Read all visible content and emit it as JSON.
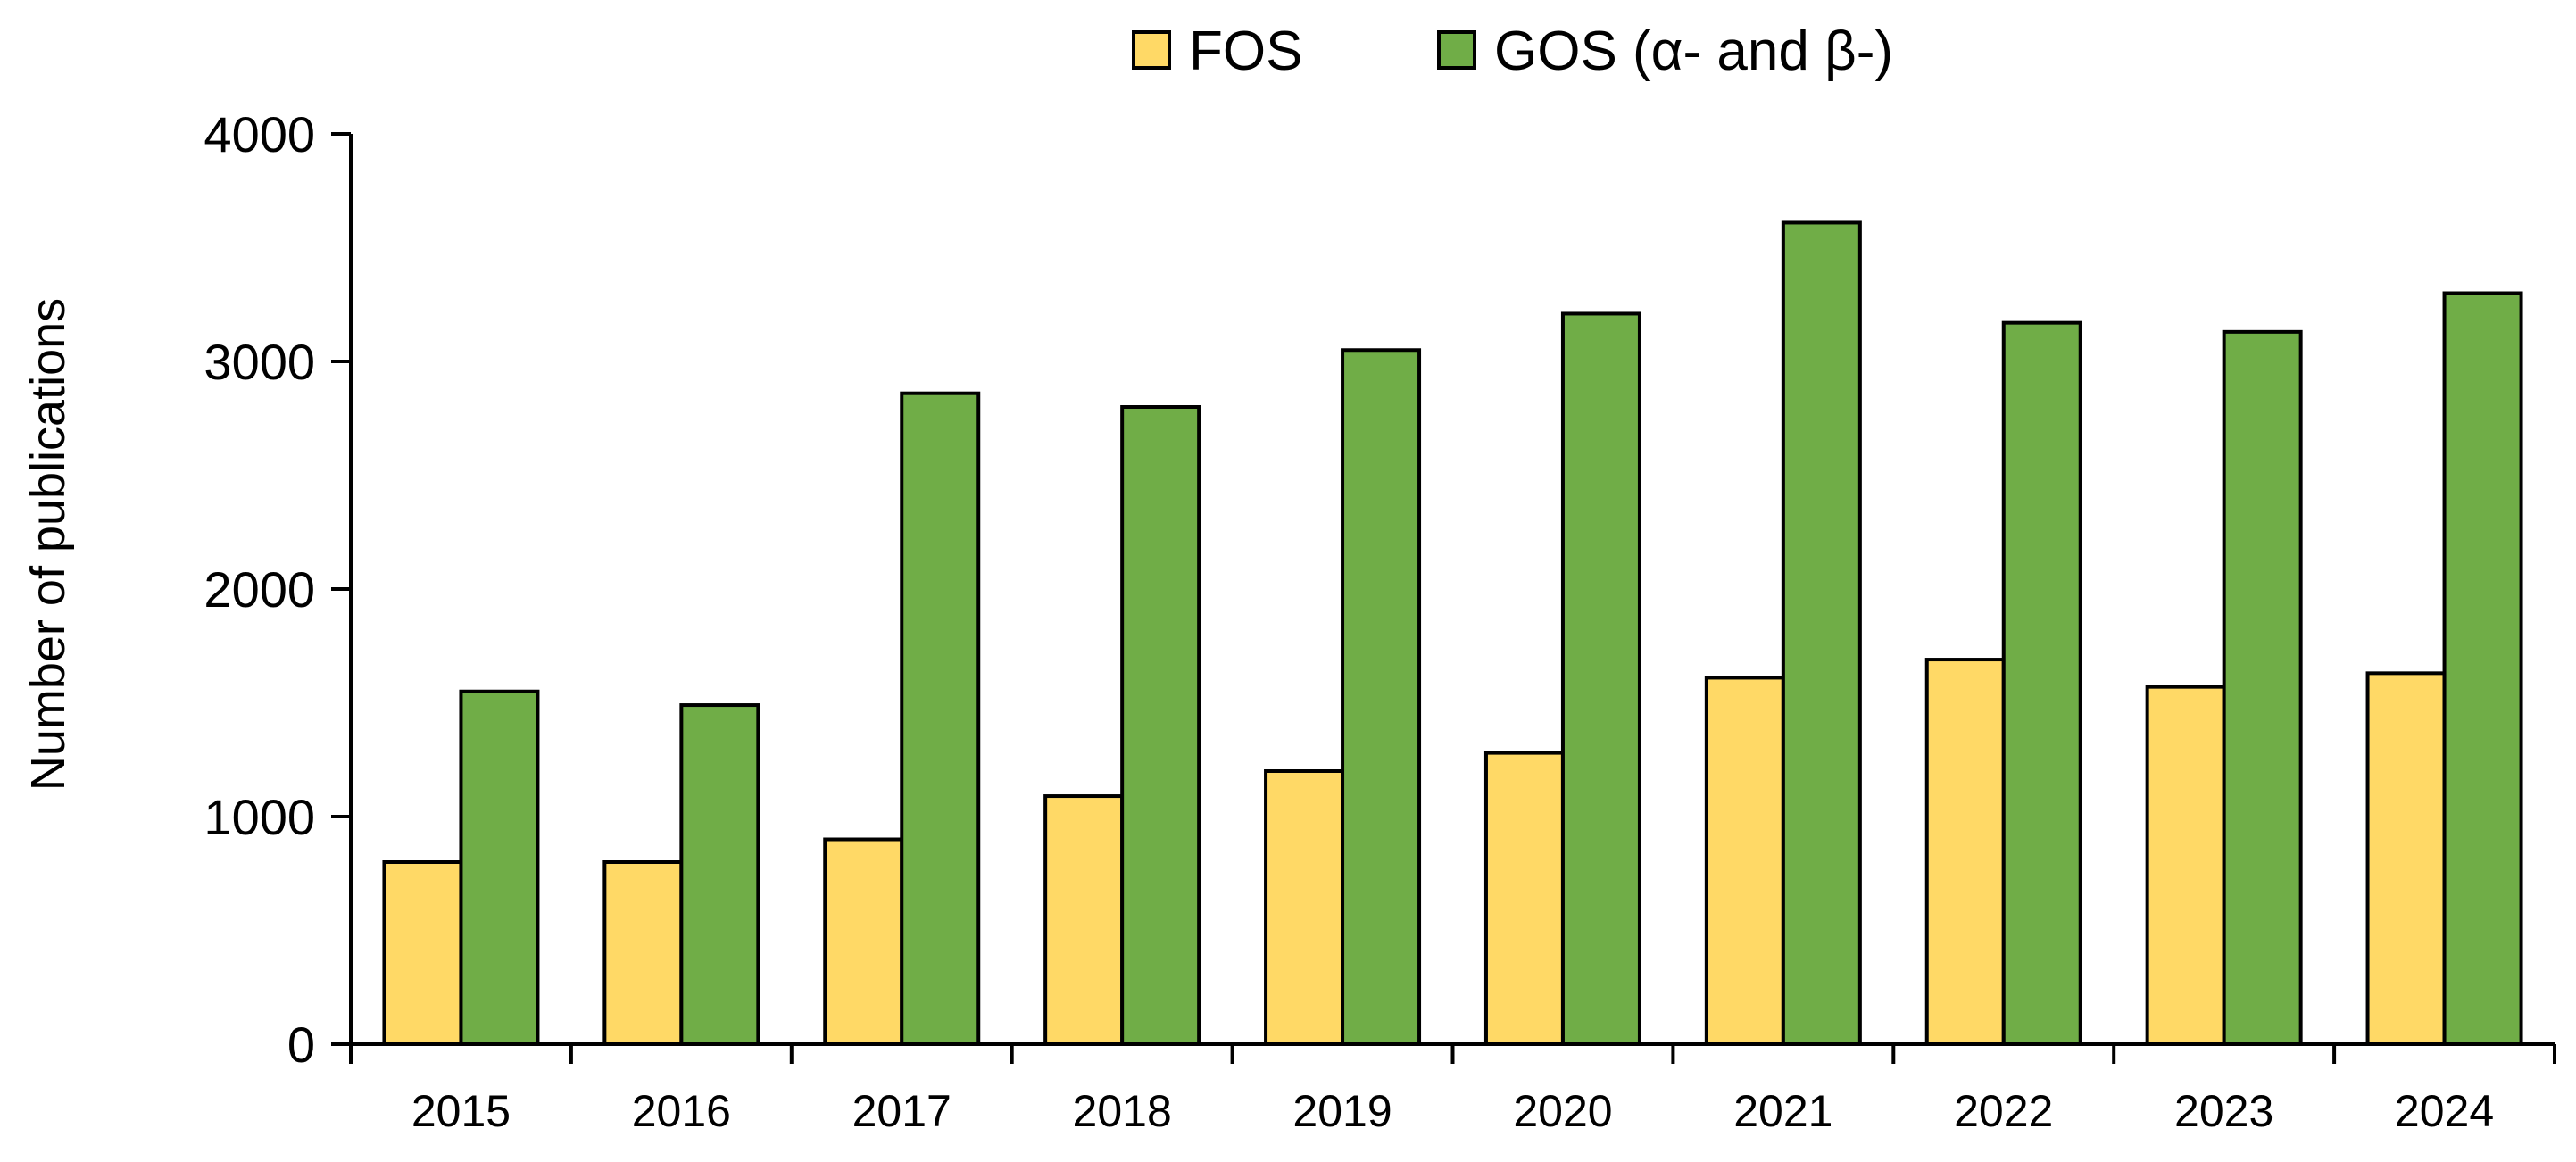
{
  "chart_data": {
    "type": "bar",
    "title": "",
    "xlabel": "",
    "ylabel": "Number of publications",
    "categories": [
      "2015",
      "2016",
      "2017",
      "2018",
      "2019",
      "2020",
      "2021",
      "2022",
      "2023",
      "2024"
    ],
    "series": [
      {
        "name": "FOS",
        "color": "#FFD966",
        "values": [
          800,
          800,
          900,
          1090,
          1200,
          1280,
          1610,
          1690,
          1570,
          1630
        ]
      },
      {
        "name": "GOS (α- and β-)",
        "color": "#70AD47",
        "values": [
          1550,
          1490,
          2860,
          2800,
          3050,
          3210,
          3610,
          3170,
          3130,
          3300
        ]
      }
    ],
    "ylim": [
      0,
      4000
    ],
    "yticks": [
      "0",
      "1000",
      "2000",
      "3000",
      "4000"
    ],
    "grid": false,
    "legend_position": "top-center"
  }
}
